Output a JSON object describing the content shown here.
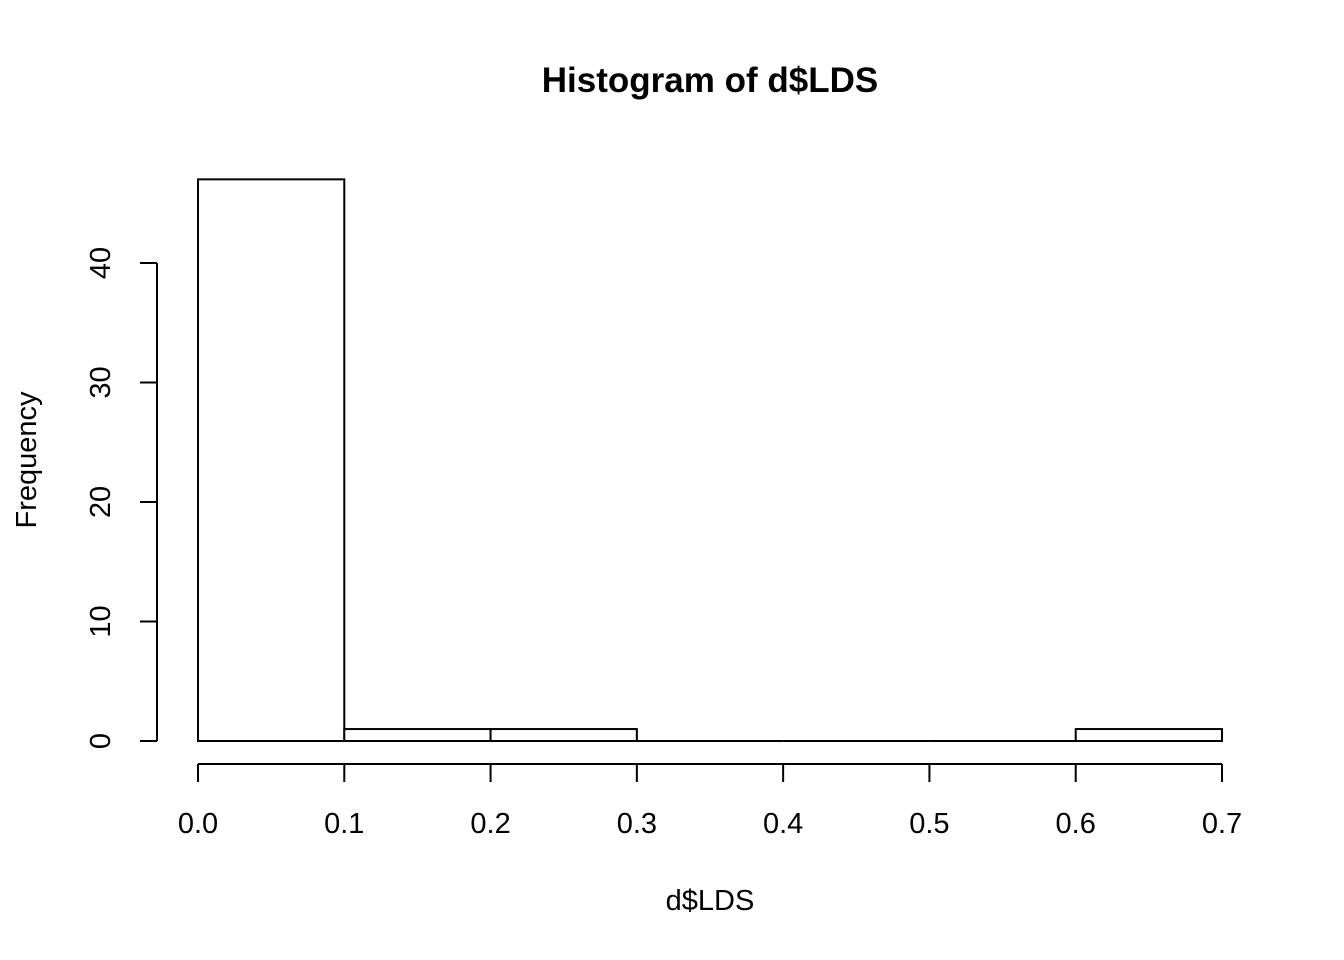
{
  "chart_data": {
    "type": "bar",
    "title": "Histogram of d$LDS",
    "xlabel": "d$LDS",
    "ylabel": "Frequency",
    "bins": [
      {
        "from": 0.0,
        "to": 0.1,
        "count": 47
      },
      {
        "from": 0.1,
        "to": 0.2,
        "count": 1
      },
      {
        "from": 0.2,
        "to": 0.3,
        "count": 1
      },
      {
        "from": 0.3,
        "to": 0.4,
        "count": 0
      },
      {
        "from": 0.4,
        "to": 0.5,
        "count": 0
      },
      {
        "from": 0.5,
        "to": 0.6,
        "count": 0
      },
      {
        "from": 0.6,
        "to": 0.7,
        "count": 1
      }
    ],
    "xlim": [
      0.0,
      0.7
    ],
    "ylim": [
      0,
      47
    ],
    "x_ticks": [
      "0.0",
      "0.1",
      "0.2",
      "0.3",
      "0.4",
      "0.5",
      "0.6",
      "0.7"
    ],
    "y_ticks": [
      "0",
      "10",
      "20",
      "30",
      "40"
    ],
    "grid": false,
    "colors": {
      "bar_fill": "#ffffff",
      "bar_stroke": "#000000",
      "background": "#ffffff"
    }
  }
}
